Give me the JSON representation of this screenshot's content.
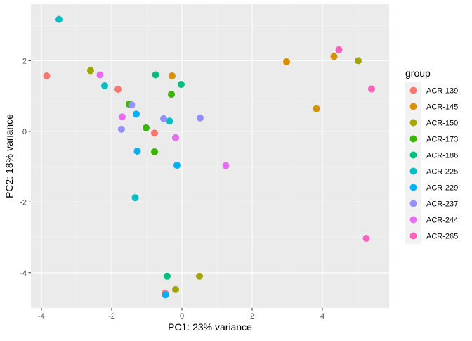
{
  "chart_data": {
    "type": "scatter",
    "title": "",
    "xlabel": "PC1: 23% variance",
    "ylabel": "PC2: 18% variance",
    "xlim": [
      -4.3,
      5.9
    ],
    "ylim": [
      -5.0,
      3.6
    ],
    "x_ticks": [
      -4,
      -2,
      0,
      2,
      4
    ],
    "y_ticks": [
      -4,
      -2,
      0,
      2
    ],
    "x_tick_labels": [
      "-4",
      "-2",
      "0",
      "2",
      "4"
    ],
    "y_tick_labels": [
      "-4",
      "-2",
      "0",
      "2"
    ],
    "grid": true,
    "legend": {
      "title": "group",
      "placement": "right"
    },
    "groups": [
      {
        "name": "ACR-139",
        "color": "#F8766D"
      },
      {
        "name": "ACR-145",
        "color": "#D89000"
      },
      {
        "name": "ACR-150",
        "color": "#A3A500"
      },
      {
        "name": "ACR-173",
        "color": "#39B600"
      },
      {
        "name": "ACR-186",
        "color": "#00BF7D"
      },
      {
        "name": "ACR-225",
        "color": "#00BFC4"
      },
      {
        "name": "ACR-229",
        "color": "#00B0F6"
      },
      {
        "name": "ACR-237",
        "color": "#9590FF"
      },
      {
        "name": "ACR-244",
        "color": "#E76BF3"
      },
      {
        "name": "ACR-265",
        "color": "#FF62BC"
      }
    ],
    "points": [
      {
        "group": "ACR-139",
        "x": -3.85,
        "y": 1.57
      },
      {
        "group": "ACR-139",
        "x": -1.82,
        "y": 1.19
      },
      {
        "group": "ACR-139",
        "x": -0.78,
        "y": -0.05
      },
      {
        "group": "ACR-139",
        "x": -0.48,
        "y": -4.58
      },
      {
        "group": "ACR-145",
        "x": -0.28,
        "y": 1.57
      },
      {
        "group": "ACR-145",
        "x": 2.98,
        "y": 1.97
      },
      {
        "group": "ACR-145",
        "x": 4.33,
        "y": 2.12
      },
      {
        "group": "ACR-145",
        "x": 3.83,
        "y": 0.64
      },
      {
        "group": "ACR-150",
        "x": -2.6,
        "y": 1.72
      },
      {
        "group": "ACR-150",
        "x": 5.02,
        "y": 2.0
      },
      {
        "group": "ACR-150",
        "x": 0.5,
        "y": -4.1
      },
      {
        "group": "ACR-150",
        "x": -0.18,
        "y": -4.48
      },
      {
        "group": "ACR-173",
        "x": -1.5,
        "y": 0.77
      },
      {
        "group": "ACR-173",
        "x": -1.02,
        "y": 0.1
      },
      {
        "group": "ACR-173",
        "x": -0.78,
        "y": -0.58
      },
      {
        "group": "ACR-173",
        "x": -0.3,
        "y": 1.05
      },
      {
        "group": "ACR-186",
        "x": -0.75,
        "y": 1.6
      },
      {
        "group": "ACR-186",
        "x": -0.02,
        "y": 1.33
      },
      {
        "group": "ACR-186",
        "x": -0.42,
        "y": -4.1
      },
      {
        "group": "ACR-225",
        "x": -3.5,
        "y": 3.17
      },
      {
        "group": "ACR-225",
        "x": -2.2,
        "y": 1.29
      },
      {
        "group": "ACR-225",
        "x": -0.35,
        "y": 0.29
      },
      {
        "group": "ACR-225",
        "x": -1.33,
        "y": -1.88
      },
      {
        "group": "ACR-229",
        "x": -1.3,
        "y": 0.49
      },
      {
        "group": "ACR-229",
        "x": -1.27,
        "y": -0.56
      },
      {
        "group": "ACR-229",
        "x": -0.14,
        "y": -0.96
      },
      {
        "group": "ACR-229",
        "x": -0.47,
        "y": -4.63
      },
      {
        "group": "ACR-237",
        "x": -1.43,
        "y": 0.75
      },
      {
        "group": "ACR-237",
        "x": -1.72,
        "y": 0.06
      },
      {
        "group": "ACR-237",
        "x": -0.52,
        "y": 0.36
      },
      {
        "group": "ACR-237",
        "x": 0.52,
        "y": 0.38
      },
      {
        "group": "ACR-244",
        "x": -2.33,
        "y": 1.6
      },
      {
        "group": "ACR-244",
        "x": -1.7,
        "y": 0.41
      },
      {
        "group": "ACR-244",
        "x": -0.18,
        "y": -0.18
      },
      {
        "group": "ACR-244",
        "x": 1.25,
        "y": -0.97
      },
      {
        "group": "ACR-265",
        "x": 4.47,
        "y": 2.31
      },
      {
        "group": "ACR-265",
        "x": 5.4,
        "y": 1.2
      },
      {
        "group": "ACR-265",
        "x": 5.25,
        "y": -3.03
      }
    ]
  }
}
